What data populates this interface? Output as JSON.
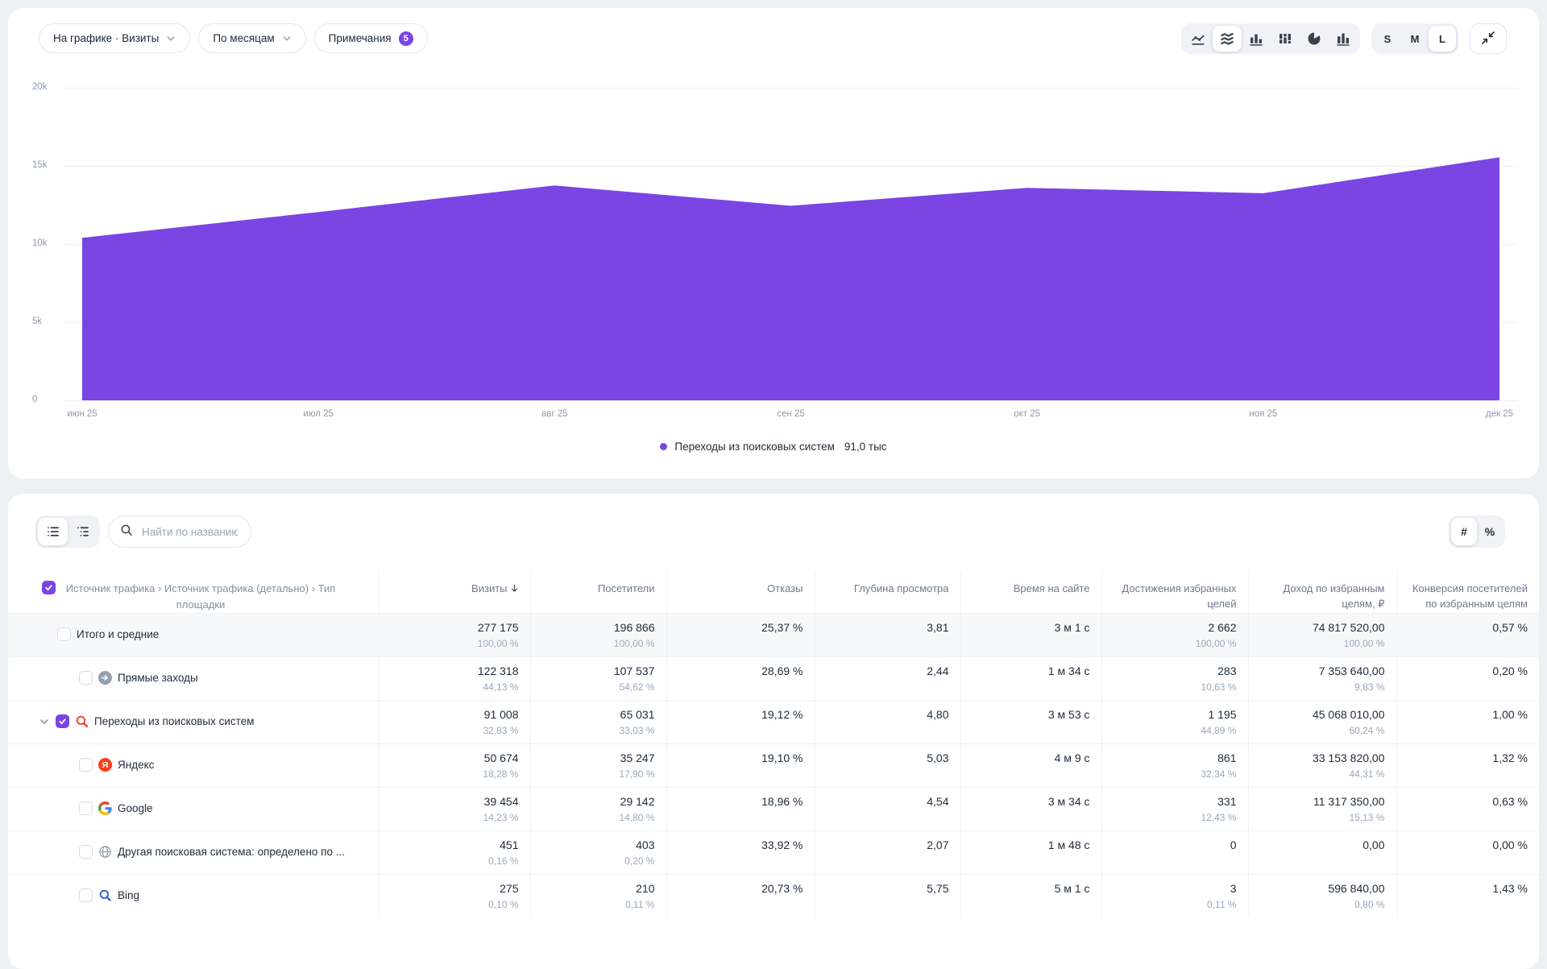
{
  "colors": {
    "accent_purple": "#7b45e4",
    "yandex_red": "#fc3f1d",
    "search_red": "#f0402f",
    "bing_blue": "#2e62de",
    "page_background": "#edf0f4"
  },
  "chart_panel": {
    "filters": [
      {
        "label": "На графике · Визиты",
        "chevron": true
      },
      {
        "label": "По месяцам",
        "chevron": true
      },
      {
        "label": "Примечания",
        "badge": "5"
      }
    ],
    "chart_types": [
      {
        "id": "line-chart-icon",
        "selected": false
      },
      {
        "id": "stacked-area-icon",
        "selected": true
      },
      {
        "id": "bar-chart-icon",
        "selected": false
      },
      {
        "id": "stacked-bar-icon",
        "selected": false
      },
      {
        "id": "pie-chart-icon",
        "selected": false
      },
      {
        "id": "columns-icon",
        "selected": false
      }
    ],
    "sizes": [
      "S",
      "M",
      "L"
    ],
    "selected_size": "L",
    "legend": {
      "label": "Переходы из поисковых систем",
      "value": "91,0 тыс"
    }
  },
  "chart_data": {
    "type": "area",
    "color": "#7b45e4",
    "title": "",
    "x": [
      "июн 25",
      "июл 25",
      "авг 25",
      "сен 25",
      "окт 25",
      "ноя 25",
      "дек 25"
    ],
    "series": [
      {
        "name": "Переходы из поисковых систем",
        "values": [
          10400,
          12050,
          13750,
          12450,
          13600,
          13250,
          15550
        ]
      }
    ],
    "total_label": "91,0 тыс",
    "ylim": [
      0,
      20000
    ],
    "yticks": [
      {
        "value": 0,
        "label": "0"
      },
      {
        "value": 5000,
        "label": "5k"
      },
      {
        "value": 10000,
        "label": "10k"
      },
      {
        "value": 15000,
        "label": "15k"
      },
      {
        "value": 20000,
        "label": "20k"
      }
    ],
    "grid": true,
    "legend_position": "bottom"
  },
  "table_panel": {
    "search_placeholder": "Найти по названию",
    "number_mode_label": "#",
    "percent_mode_label": "%",
    "selected_mode": "#",
    "header": {
      "dimension": "Источник трафика › Источник трафика (детально) › Тип площадки",
      "metrics": [
        {
          "label": "Визиты",
          "sorted": true
        },
        {
          "label": "Посетители",
          "sorted": false
        },
        {
          "label": "Отказы",
          "sorted": false
        },
        {
          "label": "Глубина просмотра",
          "sorted": false
        },
        {
          "label": "Время на сайте",
          "sorted": false
        },
        {
          "label": "Достижения избранных целей",
          "sorted": false
        },
        {
          "label": "Доход по избранным целям, ₽",
          "sorted": false
        },
        {
          "label": "Конверсия посетителей по избранным целям",
          "sorted": false
        }
      ]
    },
    "rows": [
      {
        "label": "Итого и средние",
        "level": 0,
        "expander": false,
        "checked": false,
        "icon": null,
        "totals": true,
        "cells": [
          [
            "277 175",
            "100,00 %"
          ],
          [
            "196 866",
            "100,00 %"
          ],
          [
            "25,37 %",
            null
          ],
          [
            "3,81",
            null
          ],
          [
            "3 м 1 с",
            null
          ],
          [
            "2 662",
            "100,00 %"
          ],
          [
            "74 817 520,00",
            "100,00 %"
          ],
          [
            "0,57 %",
            null
          ]
        ]
      },
      {
        "label": "Прямые заходы",
        "level": 1,
        "expander": false,
        "checked": false,
        "icon": "direct-icon",
        "totals": false,
        "cells": [
          [
            "122 318",
            "44,13 %"
          ],
          [
            "107 537",
            "54,62 %"
          ],
          [
            "28,69 %",
            null
          ],
          [
            "2,44",
            null
          ],
          [
            "1 м 34 с",
            null
          ],
          [
            "283",
            "10,63 %"
          ],
          [
            "7 353 640,00",
            "9,83 %"
          ],
          [
            "0,20 %",
            null
          ]
        ]
      },
      {
        "label": "Переходы из поисковых систем",
        "level": 1,
        "expander": true,
        "checked": true,
        "icon": "yandex-search-icon",
        "totals": false,
        "cells": [
          [
            "91 008",
            "32,83 %"
          ],
          [
            "65 031",
            "33,03 %"
          ],
          [
            "19,12 %",
            null
          ],
          [
            "4,80",
            null
          ],
          [
            "3 м 53 с",
            null
          ],
          [
            "1 195",
            "44,89 %"
          ],
          [
            "45 068 010,00",
            "60,24 %"
          ],
          [
            "1,00 %",
            null
          ]
        ]
      },
      {
        "label": "Яндекс",
        "level": 2,
        "expander": false,
        "checked": false,
        "icon": "yandex-icon",
        "totals": false,
        "cells": [
          [
            "50 674",
            "18,28 %"
          ],
          [
            "35 247",
            "17,90 %"
          ],
          [
            "19,10 %",
            null
          ],
          [
            "5,03",
            null
          ],
          [
            "4 м 9 с",
            null
          ],
          [
            "861",
            "32,34 %"
          ],
          [
            "33 153 820,00",
            "44,31 %"
          ],
          [
            "1,32 %",
            null
          ]
        ]
      },
      {
        "label": "Google",
        "level": 2,
        "expander": false,
        "checked": false,
        "icon": "google-icon",
        "totals": false,
        "cells": [
          [
            "39 454",
            "14,23 %"
          ],
          [
            "29 142",
            "14,80 %"
          ],
          [
            "18,96 %",
            null
          ],
          [
            "4,54",
            null
          ],
          [
            "3 м 34 с",
            null
          ],
          [
            "331",
            "12,43 %"
          ],
          [
            "11 317 350,00",
            "15,13 %"
          ],
          [
            "0,63 %",
            null
          ]
        ]
      },
      {
        "label": "Другая поисковая система: определено по ...",
        "level": 2,
        "expander": false,
        "checked": false,
        "icon": "globe-icon",
        "totals": false,
        "cells": [
          [
            "451",
            "0,16 %"
          ],
          [
            "403",
            "0,20 %"
          ],
          [
            "33,92 %",
            null
          ],
          [
            "2,07",
            null
          ],
          [
            "1 м 48 с",
            null
          ],
          [
            "0",
            null
          ],
          [
            "0,00",
            null
          ],
          [
            "0,00 %",
            null
          ]
        ]
      },
      {
        "label": "Bing",
        "level": 2,
        "expander": false,
        "checked": false,
        "icon": "bing-icon",
        "totals": false,
        "cells": [
          [
            "275",
            "0,10 %"
          ],
          [
            "210",
            "0,11 %"
          ],
          [
            "20,73 %",
            null
          ],
          [
            "5,75",
            null
          ],
          [
            "5 м 1 с",
            null
          ],
          [
            "3",
            "0,11 %"
          ],
          [
            "596 840,00",
            "0,80 %"
          ],
          [
            "1,43 %",
            null
          ]
        ]
      }
    ]
  }
}
